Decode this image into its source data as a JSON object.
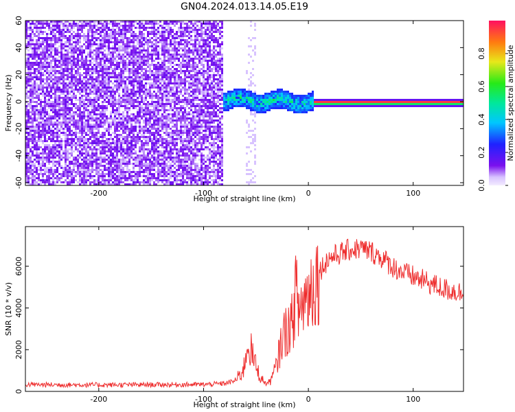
{
  "title": "GN04.2024.013.14.05.E19",
  "chart_data": [
    {
      "type": "heatmap",
      "xlabel": "Height of straight line (km)",
      "ylabel": "Frequency (Hz)",
      "xlim": [
        -270,
        148
      ],
      "ylim": [
        -62,
        60
      ],
      "xticks": [
        "-200",
        "-100",
        "0",
        "100"
      ],
      "yticks": [
        "60",
        "40",
        "20",
        "0",
        "-20",
        "-40",
        "-60"
      ],
      "colorbar": {
        "label": "Normalized spectral amplitude",
        "range": [
          0,
          1
        ],
        "ticks": [
          "0.0",
          "0.2",
          "0.4",
          "0.6",
          "0.8"
        ]
      },
      "regions": [
        {
          "description_x_range": [
            -270,
            -82
          ],
          "freq_range": [
            -62,
            60
          ],
          "amplitude": "low (~0.05-0.15), broadband noise"
        },
        {
          "description_x_range": [
            -82,
            5
          ],
          "freq_center": 2,
          "freq_halfwidth": 8,
          "amplitude": "0.3-0.6 narrowband signal"
        },
        {
          "description_x_range": [
            5,
            148
          ],
          "freq_center": 0,
          "freq_halfwidth": 2,
          "amplitude": "~0.9-1.0 carrier line"
        }
      ],
      "grid": false
    },
    {
      "type": "line",
      "xlabel": "Height of straight line (km)",
      "ylabel": "SNR (10 * v/v)",
      "xlim": [
        -270,
        148
      ],
      "ylim": [
        0,
        7900
      ],
      "xticks": [
        "-200",
        "-100",
        "0",
        "100"
      ],
      "yticks": [
        "0",
        "2000",
        "4000",
        "6000"
      ],
      "color": "#ee2c2c",
      "series": [
        {
          "x": [
            -270,
            -250,
            -200,
            -150,
            -100,
            -80,
            -70,
            -62,
            -58,
            -55,
            -50,
            -45,
            -40,
            -35,
            -30,
            -25,
            -20,
            -15,
            -12,
            -10,
            -5,
            0,
            5,
            10,
            15,
            20,
            30,
            40,
            50,
            60,
            70,
            80,
            90,
            100,
            110,
            120,
            130,
            140,
            148
          ],
          "y": [
            330,
            320,
            310,
            320,
            330,
            380,
            500,
            1000,
            2300,
            2000,
            1200,
            600,
            350,
            600,
            1300,
            2600,
            3000,
            3300,
            5000,
            3800,
            4300,
            4700,
            5200,
            5700,
            6100,
            6400,
            6600,
            6800,
            6850,
            6700,
            6400,
            6000,
            5700,
            5500,
            5300,
            5100,
            4900,
            4800,
            4700
          ]
        }
      ],
      "grid": false
    }
  ]
}
